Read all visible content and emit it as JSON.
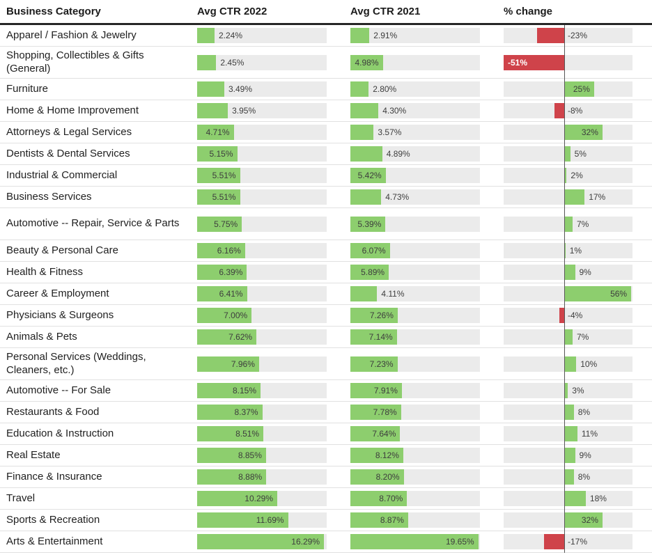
{
  "header": {
    "category": "Business Category",
    "ctr_2022": "Avg CTR 2022",
    "ctr_2021": "Avg CTR 2021",
    "change": "% change"
  },
  "colors": {
    "positive_bar": "#8dce6e",
    "negative_bar": "#cf434a",
    "track": "#ebebeb",
    "zero_line": "#565656"
  },
  "chart_data": {
    "type": "bar",
    "title": "",
    "legend": "none",
    "columns": [
      "Business Category",
      "Avg CTR 2022",
      "Avg CTR 2021",
      "% change"
    ],
    "axes": {
      "ctr_2022": {
        "min": 0,
        "track_max": 16.65,
        "unit": "%"
      },
      "ctr_2021": {
        "min": 0,
        "track_max": 19.9,
        "unit": "%"
      },
      "change": {
        "min": -51,
        "max": 56.5,
        "unit": "%",
        "zero_line": true
      }
    },
    "rows": [
      {
        "category": "Apparel / Fashion & Jewelry",
        "ctr_2022": 2.24,
        "ctr_2021": 2.91,
        "change": -23,
        "p22": "out",
        "p21": "out",
        "pch": "out",
        "tall": false
      },
      {
        "category": "Shopping, Collectibles & Gifts (General)",
        "ctr_2022": 2.45,
        "ctr_2021": 4.98,
        "change": -51,
        "p22": "out",
        "p21": "in",
        "pch": "in",
        "tall": true
      },
      {
        "category": "Furniture",
        "ctr_2022": 3.49,
        "ctr_2021": 2.8,
        "change": 25,
        "p22": "out",
        "p21": "out",
        "pch": "in",
        "tall": false
      },
      {
        "category": "Home & Home Improvement",
        "ctr_2022": 3.95,
        "ctr_2021": 4.3,
        "change": -8,
        "p22": "out",
        "p21": "out",
        "pch": "out",
        "tall": false
      },
      {
        "category": "Attorneys & Legal Services",
        "ctr_2022": 4.71,
        "ctr_2021": 3.57,
        "change": 32,
        "p22": "in",
        "p21": "out",
        "pch": "in",
        "tall": false
      },
      {
        "category": "Dentists & Dental Services",
        "ctr_2022": 5.15,
        "ctr_2021": 4.89,
        "change": 5,
        "p22": "in",
        "p21": "out",
        "pch": "out",
        "tall": false
      },
      {
        "category": "Industrial & Commercial",
        "ctr_2022": 5.51,
        "ctr_2021": 5.42,
        "change": 2,
        "p22": "in",
        "p21": "in",
        "pch": "out",
        "tall": false
      },
      {
        "category": "Business Services",
        "ctr_2022": 5.51,
        "ctr_2021": 4.73,
        "change": 17,
        "p22": "in",
        "p21": "out",
        "pch": "out",
        "tall": false
      },
      {
        "category": "Automotive -- Repair, Service & Parts",
        "ctr_2022": 5.75,
        "ctr_2021": 5.39,
        "change": 7,
        "p22": "in",
        "p21": "in",
        "pch": "out",
        "tall": true
      },
      {
        "category": "Beauty & Personal Care",
        "ctr_2022": 6.16,
        "ctr_2021": 6.07,
        "change": 1,
        "p22": "in",
        "p21": "in",
        "pch": "out",
        "tall": false
      },
      {
        "category": "Health & Fitness",
        "ctr_2022": 6.39,
        "ctr_2021": 5.89,
        "change": 9,
        "p22": "in",
        "p21": "in",
        "pch": "out",
        "tall": false
      },
      {
        "category": "Career & Employment",
        "ctr_2022": 6.41,
        "ctr_2021": 4.11,
        "change": 56,
        "p22": "in",
        "p21": "out",
        "pch": "in",
        "tall": false
      },
      {
        "category": "Physicians & Surgeons",
        "ctr_2022": 7.0,
        "ctr_2021": 7.26,
        "change": -4,
        "p22": "in",
        "p21": "in",
        "pch": "out",
        "tall": false
      },
      {
        "category": "Animals & Pets",
        "ctr_2022": 7.62,
        "ctr_2021": 7.14,
        "change": 7,
        "p22": "in",
        "p21": "in",
        "pch": "out",
        "tall": false
      },
      {
        "category": "Personal Services (Weddings, Cleaners, etc.)",
        "ctr_2022": 7.96,
        "ctr_2021": 7.23,
        "change": 10,
        "p22": "in",
        "p21": "in",
        "pch": "out",
        "tall": true
      },
      {
        "category": "Automotive -- For Sale",
        "ctr_2022": 8.15,
        "ctr_2021": 7.91,
        "change": 3,
        "p22": "in",
        "p21": "in",
        "pch": "out",
        "tall": false
      },
      {
        "category": "Restaurants & Food",
        "ctr_2022": 8.37,
        "ctr_2021": 7.78,
        "change": 8,
        "p22": "in",
        "p21": "in",
        "pch": "out",
        "tall": false
      },
      {
        "category": "Education & Instruction",
        "ctr_2022": 8.51,
        "ctr_2021": 7.64,
        "change": 11,
        "p22": "in",
        "p21": "in",
        "pch": "out",
        "tall": false
      },
      {
        "category": "Real Estate",
        "ctr_2022": 8.85,
        "ctr_2021": 8.12,
        "change": 9,
        "p22": "in",
        "p21": "in",
        "pch": "out",
        "tall": false
      },
      {
        "category": "Finance & Insurance",
        "ctr_2022": 8.88,
        "ctr_2021": 8.2,
        "change": 8,
        "p22": "in",
        "p21": "in",
        "pch": "out",
        "tall": false
      },
      {
        "category": "Travel",
        "ctr_2022": 10.29,
        "ctr_2021": 8.7,
        "change": 18,
        "p22": "in",
        "p21": "in",
        "pch": "out",
        "tall": false
      },
      {
        "category": "Sports & Recreation",
        "ctr_2022": 11.69,
        "ctr_2021": 8.87,
        "change": 32,
        "p22": "in",
        "p21": "in",
        "pch": "in",
        "tall": false
      },
      {
        "category": "Arts & Entertainment",
        "ctr_2022": 16.29,
        "ctr_2021": 19.65,
        "change": -17,
        "p22": "in",
        "p21": "in",
        "pch": "out",
        "tall": false
      }
    ]
  }
}
